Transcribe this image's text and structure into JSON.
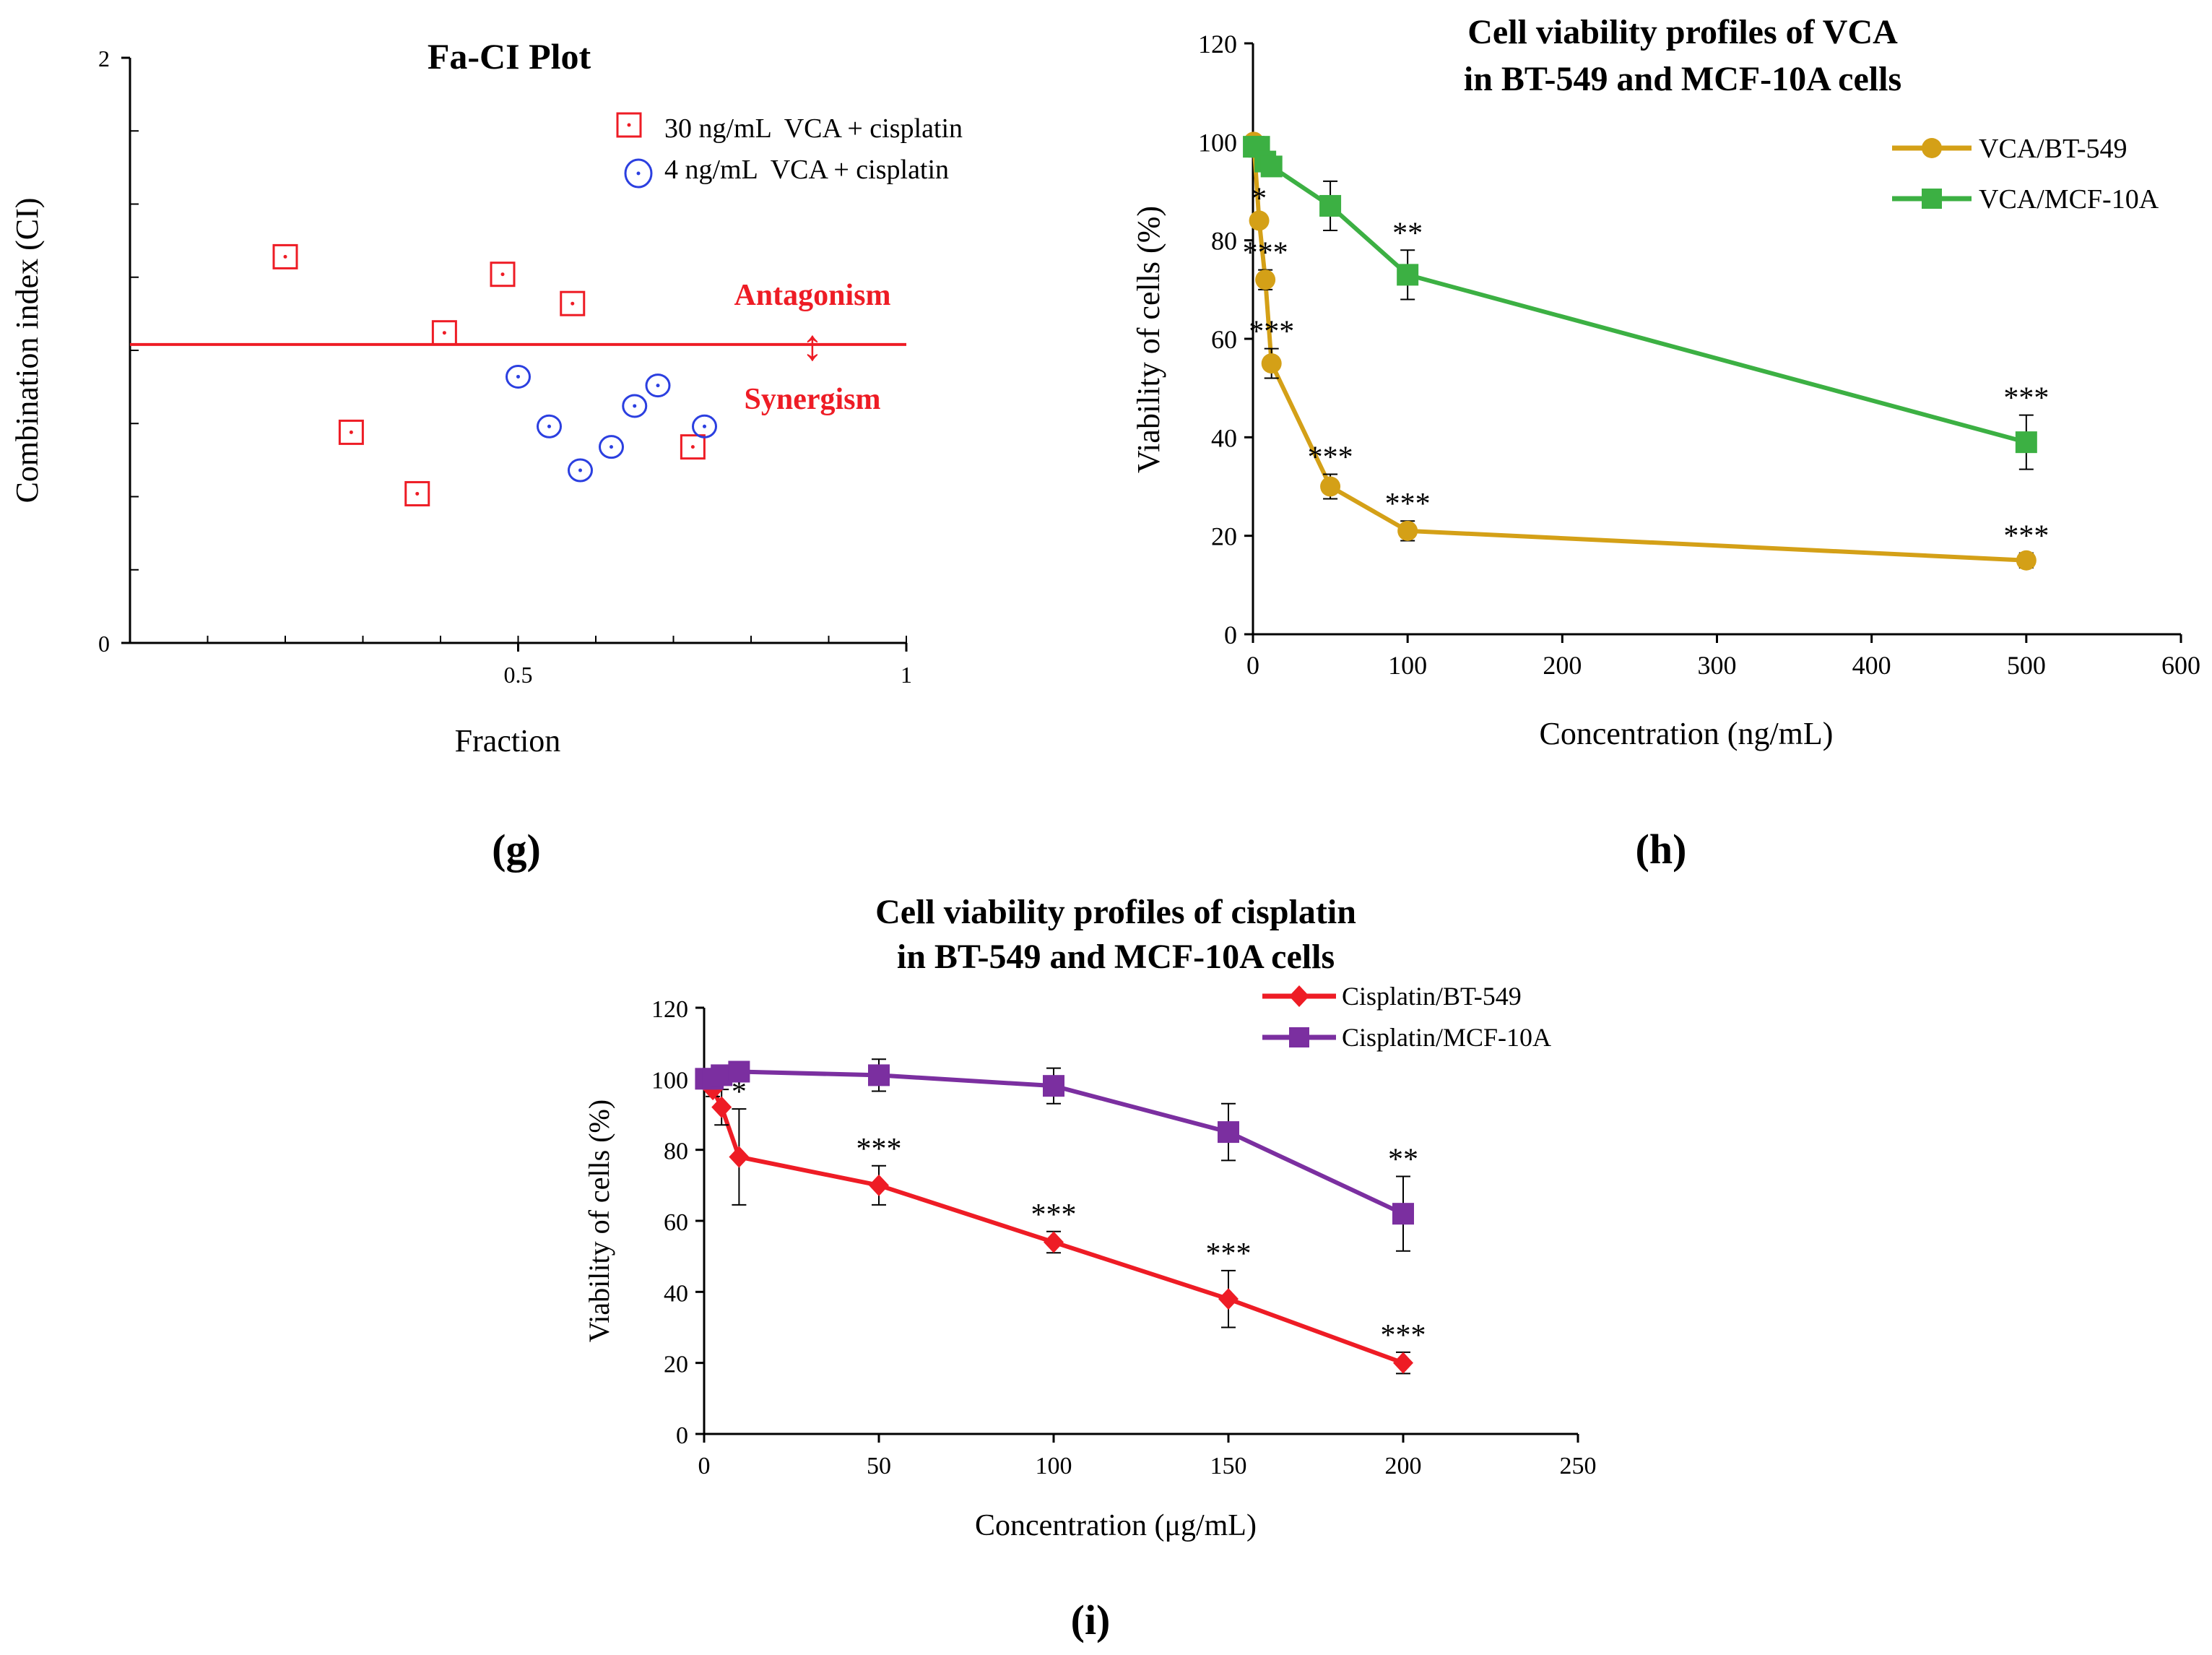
{
  "chart_data": [
    {
      "panel": "g",
      "type": "scatter",
      "title": "Fa-CI Plot",
      "xlabel": "Fraction",
      "ylabel": "Combination index (CI)",
      "xlim": [
        0,
        1
      ],
      "ylim": [
        0,
        2
      ],
      "x_ticks": [
        {
          "value": 0.5,
          "label": "0.5"
        },
        {
          "value": 1,
          "label": "1"
        }
      ],
      "y_ticks": [
        {
          "value": 0,
          "label": "0"
        },
        {
          "value": 2,
          "label": "2"
        }
      ],
      "reference_line": {
        "y": 1.02,
        "color": "#ee1c25"
      },
      "annotations": [
        {
          "text": "Antagonism",
          "color": "#ee1c25"
        },
        {
          "text": "↕",
          "color": "#ee1c25"
        },
        {
          "text": "Synergism",
          "color": "#ee1c25"
        }
      ],
      "series": [
        {
          "name": "30 ng/mL  VCA + cisplatin",
          "color": "#ee1c25",
          "marker": "square",
          "points": [
            {
              "x": 0.2,
              "y": 1.32
            },
            {
              "x": 0.285,
              "y": 0.72
            },
            {
              "x": 0.37,
              "y": 0.51
            },
            {
              "x": 0.405,
              "y": 1.06
            },
            {
              "x": 0.48,
              "y": 1.26
            },
            {
              "x": 0.57,
              "y": 1.16
            },
            {
              "x": 0.725,
              "y": 0.67
            }
          ]
        },
        {
          "name": "4 ng/mL  VCA + cisplatin",
          "color": "#2b3fe0",
          "marker": "circle",
          "points": [
            {
              "x": 0.5,
              "y": 0.91
            },
            {
              "x": 0.54,
              "y": 0.74
            },
            {
              "x": 0.58,
              "y": 0.59
            },
            {
              "x": 0.62,
              "y": 0.67
            },
            {
              "x": 0.65,
              "y": 0.81
            },
            {
              "x": 0.68,
              "y": 0.88
            },
            {
              "x": 0.74,
              "y": 0.74
            }
          ]
        }
      ]
    },
    {
      "panel": "h",
      "type": "line",
      "title": "Cell viability profiles of VCA",
      "subtitle": "in BT-549 and MCF-10A cells",
      "xlabel": "Concentration (ng/mL)",
      "ylabel": "Viability of cells (%)",
      "xlim": [
        0,
        600
      ],
      "ylim": [
        0,
        120
      ],
      "x_ticks": [
        0,
        100,
        200,
        300,
        400,
        500,
        600
      ],
      "y_ticks": [
        0,
        20,
        40,
        60,
        80,
        100,
        120
      ],
      "series": [
        {
          "name": "VCA/BT-549",
          "color": "#d4a017",
          "marker": "circle",
          "points": [
            {
              "x": 0.5,
              "y": 100,
              "err": 1,
              "sig": ""
            },
            {
              "x": 4,
              "y": 84,
              "err": 1,
              "sig": "*"
            },
            {
              "x": 8,
              "y": 72,
              "err": 2,
              "sig": "***"
            },
            {
              "x": 12,
              "y": 55,
              "err": 3,
              "sig": "***"
            },
            {
              "x": 50,
              "y": 30,
              "err": 2.5,
              "sig": "***"
            },
            {
              "x": 100,
              "y": 21,
              "err": 2,
              "sig": "***"
            },
            {
              "x": 500,
              "y": 15,
              "err": 1.5,
              "sig": "***"
            }
          ]
        },
        {
          "name": "VCA/MCF-10A",
          "color": "#3cb043",
          "marker": "square",
          "points": [
            {
              "x": 0.5,
              "y": 99,
              "err": 1,
              "sig": ""
            },
            {
              "x": 4,
              "y": 99,
              "err": 1,
              "sig": ""
            },
            {
              "x": 8,
              "y": 96,
              "err": 1.5,
              "sig": ""
            },
            {
              "x": 12,
              "y": 95,
              "err": 1.5,
              "sig": ""
            },
            {
              "x": 50,
              "y": 87,
              "err": 5,
              "sig": ""
            },
            {
              "x": 100,
              "y": 73,
              "err": 5,
              "sig": "**"
            },
            {
              "x": 500,
              "y": 39,
              "err": 5.5,
              "sig": "***"
            }
          ]
        }
      ]
    },
    {
      "panel": "i",
      "type": "line",
      "title": "Cell viability profiles of cisplatin",
      "subtitle": "in BT-549 and MCF-10A cells",
      "xlabel": "Concentration (μg/mL)",
      "ylabel": "Viability of cells (%)",
      "xlim": [
        0,
        250
      ],
      "ylim": [
        0,
        120
      ],
      "x_ticks": [
        0,
        50,
        100,
        150,
        200,
        250
      ],
      "y_ticks": [
        0,
        20,
        40,
        60,
        80,
        100,
        120
      ],
      "series": [
        {
          "name": "Cisplatin/BT-549",
          "color": "#ee1c25",
          "marker": "diamond",
          "points": [
            {
              "x": 0.5,
              "y": 100,
              "err": 1,
              "sig": ""
            },
            {
              "x": 2.5,
              "y": 97,
              "err": 2,
              "sig": ""
            },
            {
              "x": 5,
              "y": 92,
              "err": 5,
              "sig": ""
            },
            {
              "x": 10,
              "y": 78,
              "err": 13.5,
              "sig": "*"
            },
            {
              "x": 50,
              "y": 70,
              "err": 5.5,
              "sig": "***"
            },
            {
              "x": 100,
              "y": 54,
              "err": 3,
              "sig": "***"
            },
            {
              "x": 150,
              "y": 38,
              "err": 8,
              "sig": "***"
            },
            {
              "x": 200,
              "y": 20,
              "err": 3,
              "sig": "***"
            }
          ]
        },
        {
          "name": "Cisplatin/MCF-10A",
          "color": "#7b2fa0",
          "marker": "square",
          "points": [
            {
              "x": 0.5,
              "y": 100,
              "err": 1,
              "sig": ""
            },
            {
              "x": 2.5,
              "y": 100,
              "err": 1,
              "sig": ""
            },
            {
              "x": 5,
              "y": 101,
              "err": 1.5,
              "sig": ""
            },
            {
              "x": 10,
              "y": 102,
              "err": 1.5,
              "sig": ""
            },
            {
              "x": 50,
              "y": 101,
              "err": 4.5,
              "sig": ""
            },
            {
              "x": 100,
              "y": 98,
              "err": 5,
              "sig": ""
            },
            {
              "x": 150,
              "y": 85,
              "err": 8,
              "sig": ""
            },
            {
              "x": 200,
              "y": 62,
              "err": 10.5,
              "sig": "**"
            }
          ]
        }
      ]
    }
  ],
  "panel_labels": {
    "g": "(g)",
    "h": "(h)",
    "i": "(i)"
  }
}
